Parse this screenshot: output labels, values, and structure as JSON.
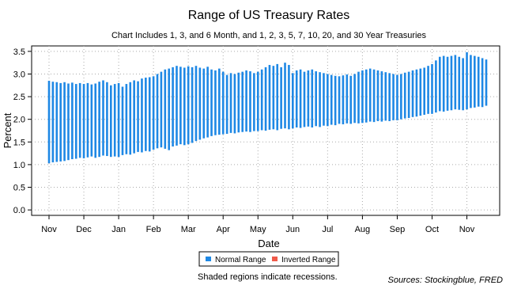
{
  "chart_data": {
    "type": "range",
    "title": "Range of US Treasury Rates",
    "subtitle": "Chart Includes 1, 3, and 6 Month, and 1, 2, 3, 5, 7, 10, 20, and 30 Year Treasuries",
    "x_label": "Date",
    "y_label": "Percent",
    "note": "Shaded regions indicate recessions.",
    "source": "Sources: Stockingblue, FRED",
    "grid": true,
    "legend": "bottom",
    "ylim": [
      -0.12,
      3.62
    ],
    "yticks": [
      {
        "value": 0,
        "label": "0.0"
      },
      0.5,
      {
        "value": 1,
        "label": "1.0"
      },
      1.5,
      {
        "value": 2,
        "label": "2.0"
      },
      2.5,
      {
        "value": 3,
        "label": "3.0"
      },
      3.5
    ],
    "categories": [
      "Nov",
      null,
      null,
      null,
      null,
      null,
      null,
      null,
      null,
      "Dec",
      null,
      null,
      null,
      null,
      null,
      null,
      null,
      null,
      "Jan",
      null,
      null,
      null,
      null,
      null,
      null,
      null,
      null,
      "Feb",
      null,
      null,
      null,
      null,
      null,
      null,
      null,
      null,
      "Mar",
      null,
      null,
      null,
      null,
      null,
      null,
      null,
      null,
      "Apr",
      null,
      null,
      null,
      null,
      null,
      null,
      null,
      null,
      "May",
      null,
      null,
      null,
      null,
      null,
      null,
      null,
      null,
      "Jun",
      null,
      null,
      null,
      null,
      null,
      null,
      null,
      null,
      "Jul",
      null,
      null,
      null,
      null,
      null,
      null,
      null,
      null,
      "Aug",
      null,
      null,
      null,
      null,
      null,
      null,
      null,
      null,
      "Sep",
      null,
      null,
      null,
      null,
      null,
      null,
      null,
      null,
      "Oct",
      null,
      null,
      null,
      null,
      null,
      null,
      null,
      null,
      "Nov",
      null,
      null,
      null,
      null,
      null
    ],
    "series": [
      {
        "name": "Normal Range",
        "color": "#1e88e5",
        "low": [
          1.03,
          1.05,
          1.06,
          1.07,
          1.08,
          1.1,
          1.12,
          1.13,
          1.15,
          1.14,
          1.16,
          1.18,
          1.15,
          1.17,
          1.2,
          1.19,
          1.17,
          1.18,
          1.17,
          1.21,
          1.23,
          1.22,
          1.25,
          1.28,
          1.27,
          1.3,
          1.29,
          1.33,
          1.36,
          1.38,
          1.35,
          1.32,
          1.4,
          1.42,
          1.45,
          1.43,
          1.45,
          1.48,
          1.52,
          1.55,
          1.58,
          1.6,
          1.63,
          1.65,
          1.66,
          1.67,
          1.68,
          1.7,
          1.69,
          1.71,
          1.72,
          1.73,
          1.72,
          1.74,
          1.74,
          1.76,
          1.75,
          1.77,
          1.78,
          1.76,
          1.79,
          1.8,
          1.78,
          1.8,
          1.82,
          1.81,
          1.83,
          1.84,
          1.82,
          1.85,
          1.83,
          1.86,
          1.85,
          1.88,
          1.87,
          1.9,
          1.89,
          1.91,
          1.9,
          1.92,
          1.91,
          1.92,
          1.93,
          1.95,
          1.94,
          1.96,
          1.95,
          1.97,
          1.96,
          1.98,
          1.98,
          2.0,
          2.02,
          2.03,
          2.05,
          2.06,
          2.08,
          2.1,
          2.12,
          2.12,
          2.15,
          2.18,
          2.17,
          2.19,
          2.2,
          2.22,
          2.21,
          2.2,
          2.22,
          2.25,
          2.26,
          2.28,
          2.27,
          2.3
        ],
        "high": [
          2.85,
          2.83,
          2.82,
          2.8,
          2.82,
          2.79,
          2.81,
          2.78,
          2.8,
          2.78,
          2.8,
          2.77,
          2.79,
          2.83,
          2.86,
          2.82,
          2.75,
          2.78,
          2.8,
          2.72,
          2.78,
          2.82,
          2.86,
          2.84,
          2.9,
          2.92,
          2.93,
          2.95,
          3.0,
          3.05,
          3.1,
          3.12,
          3.15,
          3.18,
          3.16,
          3.14,
          3.17,
          3.15,
          3.18,
          3.14,
          3.12,
          3.16,
          3.1,
          3.08,
          3.12,
          3.05,
          2.98,
          3.02,
          3.0,
          3.03,
          3.05,
          3.08,
          3.06,
          3.02,
          3.05,
          3.1,
          3.15,
          3.2,
          3.18,
          3.22,
          3.15,
          3.25,
          3.2,
          3.02,
          3.08,
          3.1,
          3.05,
          3.08,
          3.1,
          3.06,
          3.04,
          3.02,
          3.0,
          2.98,
          2.96,
          2.95,
          2.97,
          2.99,
          2.96,
          3.0,
          3.05,
          3.08,
          3.1,
          3.12,
          3.1,
          3.08,
          3.06,
          3.04,
          3.02,
          3.0,
          2.98,
          3.0,
          3.03,
          3.05,
          3.08,
          3.1,
          3.12,
          3.14,
          3.18,
          3.22,
          3.3,
          3.38,
          3.4,
          3.38,
          3.4,
          3.42,
          3.38,
          3.35,
          3.48,
          3.42,
          3.4,
          3.38,
          3.35,
          3.32
        ]
      },
      {
        "name": "Inverted Range",
        "color": "#f05a4a"
      }
    ]
  }
}
